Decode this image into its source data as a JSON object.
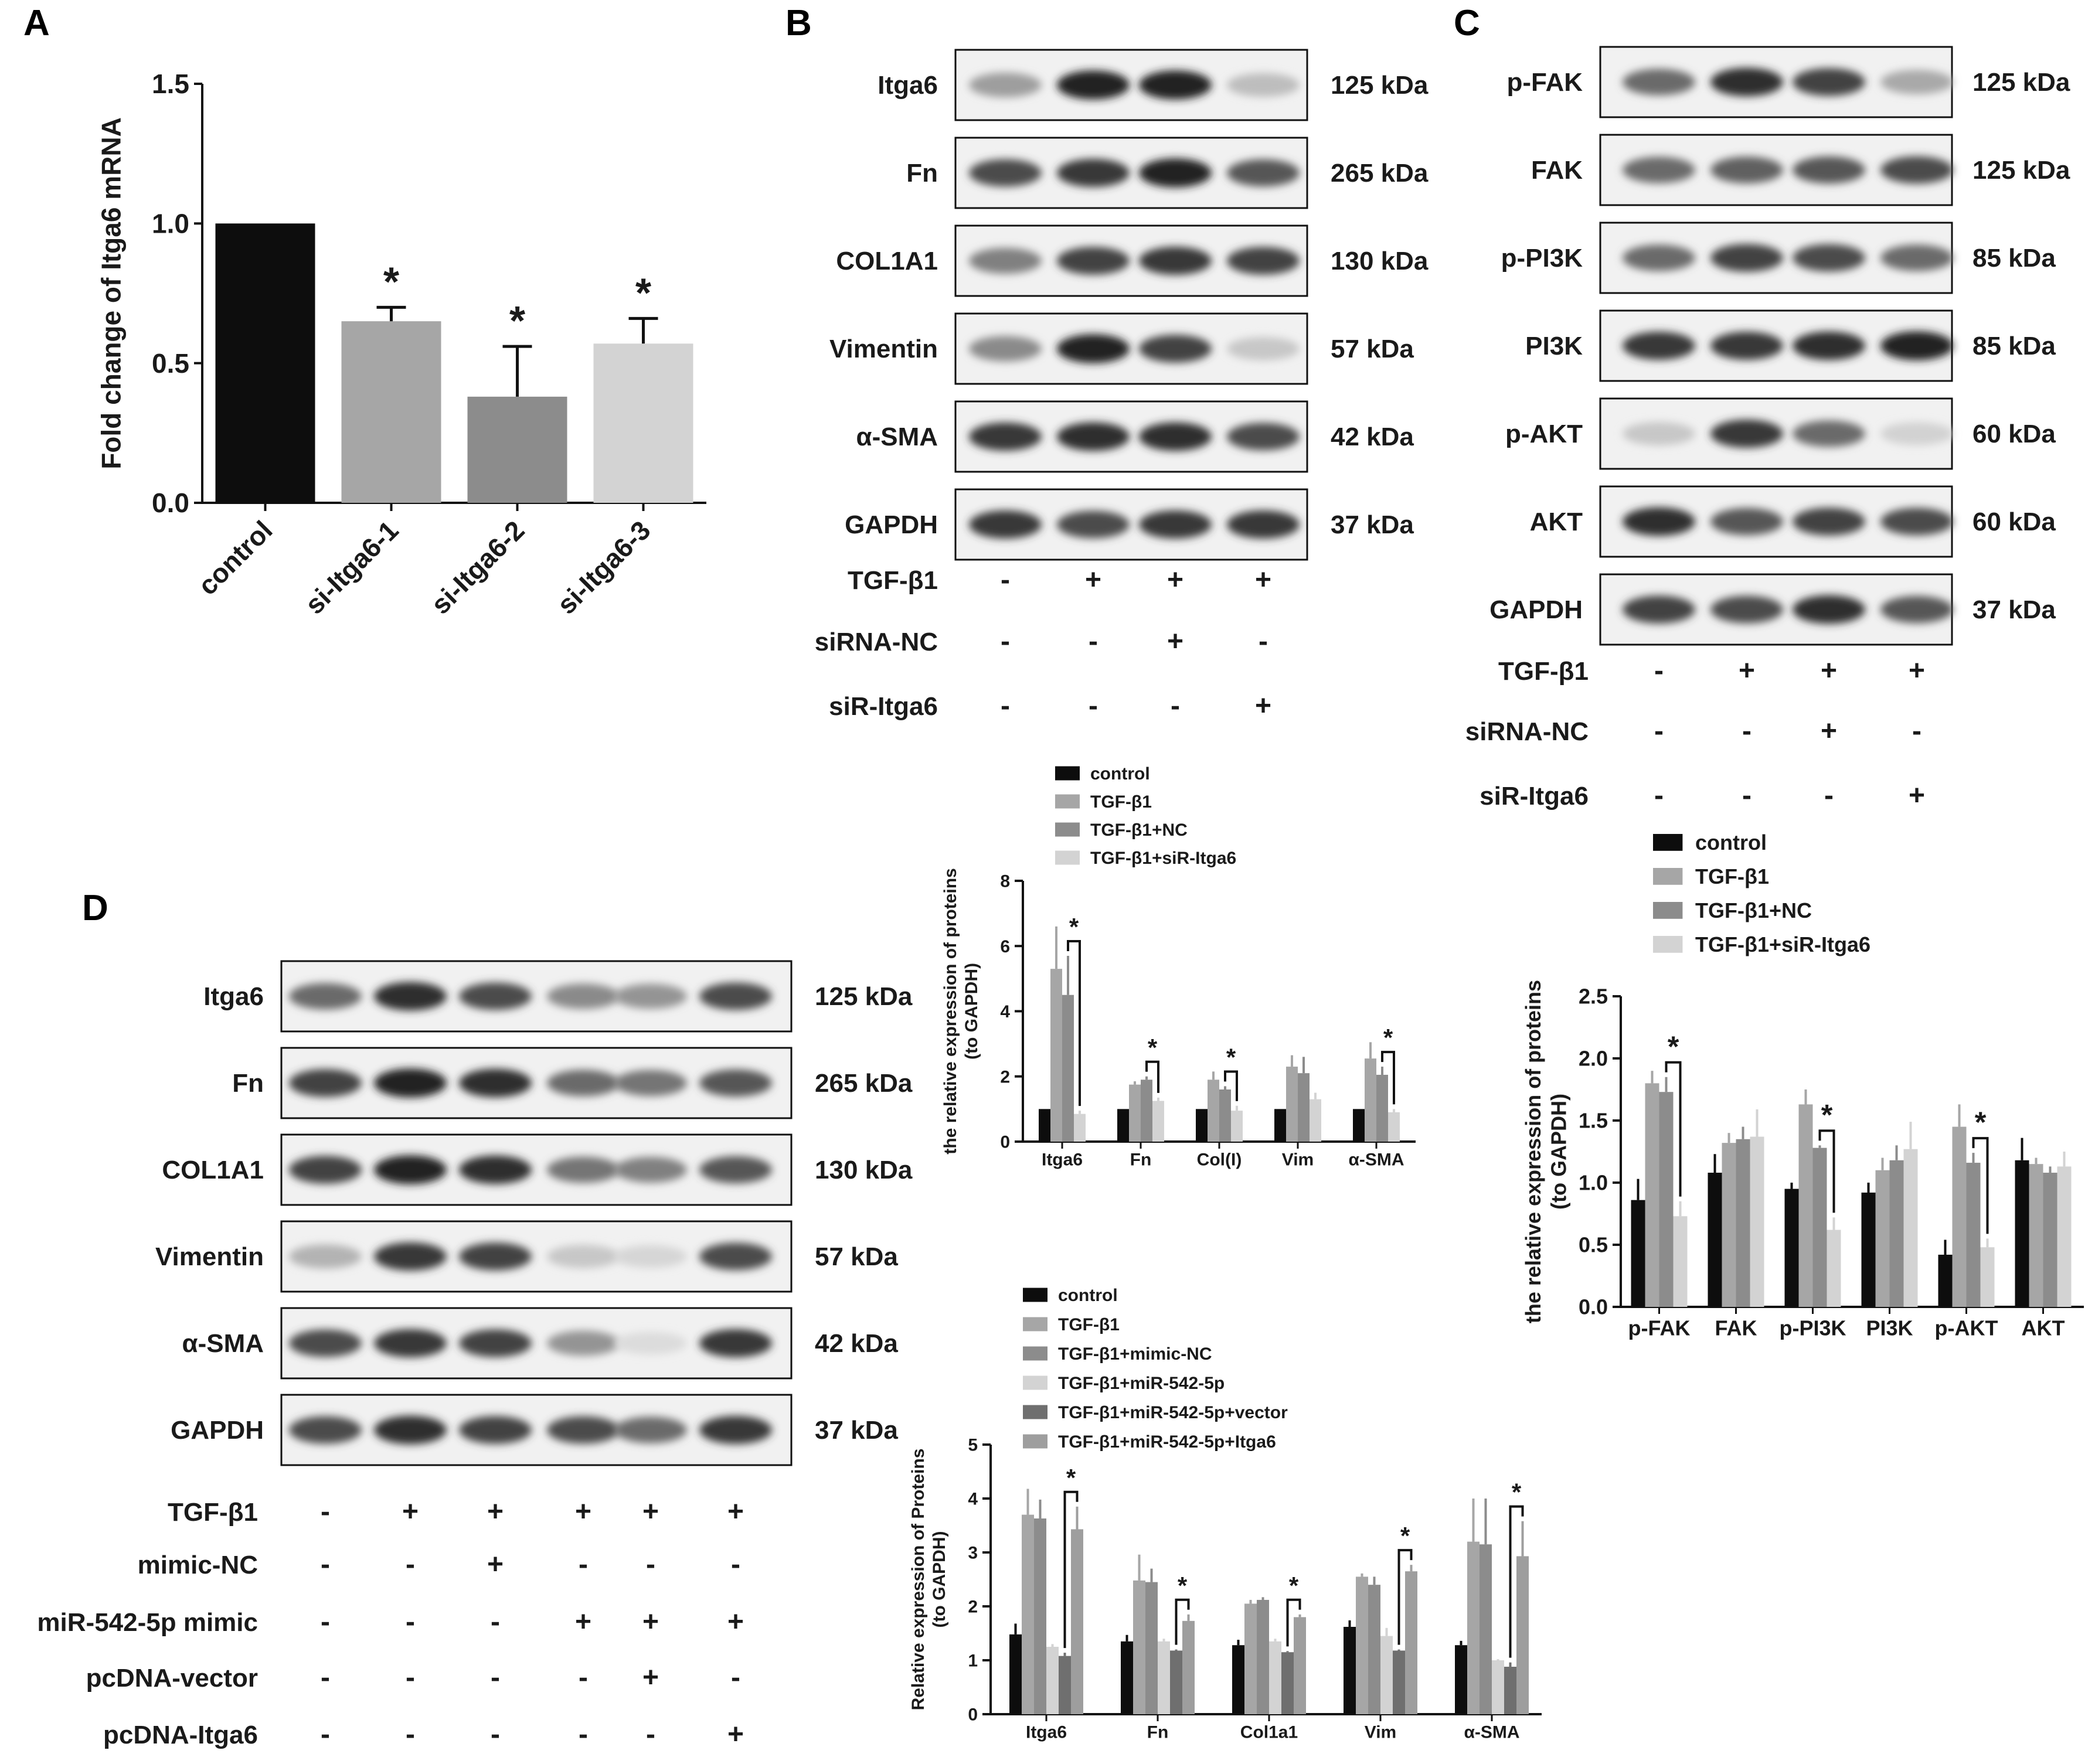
{
  "panel_letters": [
    "A",
    "B",
    "C",
    "D"
  ],
  "colors": {
    "black": "#0d0d0d",
    "gray_light": "#a6a6a6",
    "gray_mid": "#8c8c8c",
    "gray_pale": "#d3d3d3",
    "gray_dark": "#6f6f6f",
    "gray_last": "#9e9e9e"
  },
  "western_blots": [
    {
      "panel": "B",
      "bands": [
        {
          "label": "Itga6",
          "kda": "125 kDa",
          "intensity": [
            0.35,
            0.95,
            0.95,
            0.2
          ]
        },
        {
          "label": "Fn",
          "kda": "265 kDa",
          "intensity": [
            0.75,
            0.85,
            0.95,
            0.7
          ]
        },
        {
          "label": "COL1A1",
          "kda": "130 kDa",
          "intensity": [
            0.5,
            0.8,
            0.85,
            0.8
          ]
        },
        {
          "label": "Vimentin",
          "kda": "57 kDa",
          "intensity": [
            0.45,
            0.95,
            0.8,
            0.15
          ]
        },
        {
          "label": "α-SMA",
          "kda": "42 kDa",
          "intensity": [
            0.85,
            0.9,
            0.9,
            0.75
          ]
        },
        {
          "label": "GAPDH",
          "kda": "37 kDa",
          "intensity": [
            0.85,
            0.75,
            0.85,
            0.85
          ]
        }
      ],
      "conditions": [
        {
          "label": "TGF-β1",
          "signs": [
            "-",
            "+",
            "+",
            "+"
          ]
        },
        {
          "label": "siRNA-NC",
          "signs": [
            "-",
            "-",
            "+",
            "-"
          ]
        },
        {
          "label": "siR-Itga6",
          "signs": [
            "-",
            "-",
            "-",
            "+"
          ]
        }
      ]
    },
    {
      "panel": "C",
      "bands": [
        {
          "label": "p-FAK",
          "kda": "125 kDa",
          "intensity": [
            0.6,
            0.9,
            0.8,
            0.3
          ]
        },
        {
          "label": "FAK",
          "kda": "125 kDa",
          "intensity": [
            0.6,
            0.65,
            0.7,
            0.75
          ]
        },
        {
          "label": "p-PI3K",
          "kda": "85 kDa",
          "intensity": [
            0.6,
            0.8,
            0.75,
            0.6
          ]
        },
        {
          "label": "PI3K",
          "kda": "85 kDa",
          "intensity": [
            0.85,
            0.85,
            0.9,
            0.95
          ]
        },
        {
          "label": "p-AKT",
          "kda": "60 kDa",
          "intensity": [
            0.15,
            0.85,
            0.6,
            0.1
          ]
        },
        {
          "label": "AKT",
          "kda": "60 kDa",
          "intensity": [
            0.9,
            0.7,
            0.8,
            0.75
          ]
        },
        {
          "label": "GAPDH",
          "kda": "37 kDa",
          "intensity": [
            0.8,
            0.75,
            0.9,
            0.7
          ]
        }
      ],
      "conditions": [
        {
          "label": "TGF-β1",
          "signs": [
            "-",
            "+",
            "+",
            "+"
          ]
        },
        {
          "label": "siRNA-NC",
          "signs": [
            "-",
            "-",
            "+",
            "-"
          ]
        },
        {
          "label": "siR-Itga6",
          "signs": [
            "-",
            "-",
            "-",
            "+"
          ]
        }
      ]
    },
    {
      "panel": "D",
      "bands": [
        {
          "label": "Itga6",
          "kda": "125 kDa",
          "intensity": [
            0.6,
            0.9,
            0.75,
            0.45,
            0.4,
            0.75
          ]
        },
        {
          "label": "Fn",
          "kda": "265 kDa",
          "intensity": [
            0.8,
            0.95,
            0.9,
            0.6,
            0.55,
            0.7
          ]
        },
        {
          "label": "COL1A1",
          "kda": "130 kDa",
          "intensity": [
            0.8,
            0.95,
            0.9,
            0.55,
            0.5,
            0.7
          ]
        },
        {
          "label": "Vimentin",
          "kda": "57 kDa",
          "intensity": [
            0.25,
            0.85,
            0.8,
            0.15,
            0.08,
            0.75
          ]
        },
        {
          "label": "α-SMA",
          "kda": "42 kDa",
          "intensity": [
            0.75,
            0.85,
            0.8,
            0.4,
            0.05,
            0.85
          ]
        },
        {
          "label": "GAPDH",
          "kda": "37 kDa",
          "intensity": [
            0.75,
            0.9,
            0.8,
            0.75,
            0.6,
            0.85
          ]
        }
      ],
      "conditions": [
        {
          "label": "TGF-β1",
          "signs": [
            "-",
            "+",
            "+",
            "+",
            "+",
            "+"
          ]
        },
        {
          "label": "mimic-NC",
          "signs": [
            "-",
            "-",
            "+",
            "-",
            "-",
            "-"
          ]
        },
        {
          "label": "miR-542-5p mimic",
          "signs": [
            "-",
            "-",
            "-",
            "+",
            "+",
            "+"
          ]
        },
        {
          "label": "pcDNA-vector",
          "signs": [
            "-",
            "-",
            "-",
            "-",
            "+",
            "-"
          ]
        },
        {
          "label": "pcDNA-Itga6",
          "signs": [
            "-",
            "-",
            "-",
            "-",
            "-",
            "+"
          ]
        }
      ]
    }
  ],
  "chart_data": [
    {
      "panel": "A",
      "type": "bar",
      "ylabel": "Fold change of Itga6 mRNA",
      "categories": [
        "control",
        "si-Itga6-1",
        "si-Itga6-2",
        "si-Itga6-3"
      ],
      "values": [
        1.0,
        0.65,
        0.38,
        0.57
      ],
      "errors": [
        0,
        0.05,
        0.18,
        0.09
      ],
      "colors": [
        "#0d0d0d",
        "#a6a6a6",
        "#8c8c8c",
        "#d3d3d3"
      ],
      "significance": [
        "",
        "*",
        "*",
        "*"
      ],
      "ylim": [
        0,
        1.5
      ],
      "yticks": [
        "0.0",
        "0.5",
        "1.0",
        "1.5"
      ]
    },
    {
      "panel": "B",
      "type": "bar",
      "ylabel": "the relative expression of proteins (to GAPDH)",
      "ylabel_lines": [
        "the relative expression of proteins",
        "(to GAPDH)"
      ],
      "categories": [
        "Itga6",
        "Fn",
        "Col(I)",
        "Vim",
        "α-SMA"
      ],
      "ylim": [
        0,
        8
      ],
      "yticks": [
        "0",
        "2",
        "4",
        "6",
        "8"
      ],
      "legend_position": "top",
      "series": [
        {
          "name": "control",
          "color": "#0d0d0d",
          "values": [
            1.0,
            1.0,
            1.0,
            1.0,
            1.0
          ],
          "errors": [
            0,
            0,
            0,
            0,
            0
          ]
        },
        {
          "name": "TGF-β1",
          "color": "#a6a6a6",
          "values": [
            5.3,
            1.75,
            1.9,
            2.3,
            2.55
          ],
          "errors": [
            1.3,
            0.1,
            0.25,
            0.35,
            0.5
          ]
        },
        {
          "name": "TGF-β1+NC",
          "color": "#8c8c8c",
          "values": [
            4.5,
            1.9,
            1.6,
            2.1,
            2.05
          ],
          "errors": [
            1.2,
            0.1,
            0.1,
            0.5,
            0.25
          ]
        },
        {
          "name": "TGF-β1+siR-Itga6",
          "color": "#d3d3d3",
          "values": [
            0.85,
            1.25,
            0.95,
            1.3,
            0.9
          ],
          "errors": [
            0.1,
            0.1,
            0.15,
            0.2,
            0.1
          ]
        }
      ],
      "brackets": [
        [
          0,
          2,
          3
        ],
        [
          1,
          2,
          3
        ],
        [
          2,
          2,
          3
        ],
        [
          4,
          2,
          3
        ]
      ],
      "bracket_label": "*"
    },
    {
      "panel": "C",
      "type": "bar",
      "ylabel": "the relative expression of proteins (to GAPDH)",
      "ylabel_lines": [
        "the relative expression of proteins",
        "(to GAPDH)"
      ],
      "categories": [
        "p-FAK",
        "FAK",
        "p-PI3K",
        "PI3K",
        "p-AKT",
        "AKT"
      ],
      "ylim": [
        0,
        2.5
      ],
      "yticks": [
        "0.0",
        "0.5",
        "1.0",
        "1.5",
        "2.0",
        "2.5"
      ],
      "legend_position": "top",
      "series": [
        {
          "name": "control",
          "color": "#0d0d0d",
          "values": [
            0.86,
            1.08,
            0.95,
            0.92,
            0.42,
            1.18
          ],
          "errors": [
            0.17,
            0.15,
            0.05,
            0.08,
            0.12,
            0.18
          ]
        },
        {
          "name": "TGF-β1",
          "color": "#a6a6a6",
          "values": [
            1.8,
            1.32,
            1.63,
            1.1,
            1.45,
            1.15
          ],
          "errors": [
            0.1,
            0.08,
            0.12,
            0.1,
            0.18,
            0.05
          ]
        },
        {
          "name": "TGF-β1+NC",
          "color": "#8c8c8c",
          "values": [
            1.73,
            1.35,
            1.28,
            1.18,
            1.16,
            1.08
          ],
          "errors": [
            0.12,
            0.1,
            0.02,
            0.12,
            0.08,
            0.05
          ]
        },
        {
          "name": "TGF-β1+siR-Itga6",
          "color": "#d3d3d3",
          "values": [
            0.73,
            1.37,
            0.62,
            1.27,
            0.48,
            1.13
          ],
          "errors": [
            0.12,
            0.22,
            0.1,
            0.22,
            0.07,
            0.12
          ]
        }
      ],
      "brackets": [
        [
          0,
          2,
          3
        ],
        [
          2,
          2,
          3
        ],
        [
          4,
          2,
          3
        ]
      ],
      "bracket_label": "*"
    },
    {
      "panel": "D",
      "type": "bar",
      "ylabel": "Relative expression of Proteins (to GAPDH)",
      "ylabel_lines": [
        "Relative expression of Proteins",
        "(to GAPDH)"
      ],
      "categories": [
        "Itga6",
        "Fn",
        "Col1a1",
        "Vim",
        "α-SMA"
      ],
      "ylim": [
        0,
        5
      ],
      "yticks": [
        "0",
        "1",
        "2",
        "3",
        "4",
        "5"
      ],
      "legend_position": "top",
      "series": [
        {
          "name": "control",
          "color": "#0d0d0d",
          "values": [
            1.48,
            1.35,
            1.28,
            1.62,
            1.28
          ],
          "errors": [
            0.2,
            0.12,
            0.1,
            0.12,
            0.08
          ]
        },
        {
          "name": "TGF-β1",
          "color": "#a6a6a6",
          "values": [
            3.7,
            2.48,
            2.05,
            2.55,
            3.2
          ],
          "errors": [
            0.48,
            0.48,
            0.07,
            0.06,
            0.8
          ]
        },
        {
          "name": "TGF-β1+mimic-NC",
          "color": "#8c8c8c",
          "values": [
            3.63,
            2.45,
            2.12,
            2.4,
            3.15
          ],
          "errors": [
            0.35,
            0.25,
            0.05,
            0.15,
            0.85
          ]
        },
        {
          "name": "TGF-β1+miR-542-5p",
          "color": "#d3d3d3",
          "values": [
            1.25,
            1.35,
            1.35,
            1.45,
            1.0
          ],
          "errors": [
            0.05,
            0.05,
            0.05,
            0.15,
            0.02
          ]
        },
        {
          "name": "TGF-β1+miR-542-5p+vector",
          "color": "#6f6f6f",
          "values": [
            1.08,
            1.18,
            1.15,
            1.18,
            0.88
          ],
          "errors": [
            0.06,
            0.02,
            0.02,
            0.02,
            0.08
          ]
        },
        {
          "name": "TGF-β1+miR-542-5p+Itga6",
          "color": "#9e9e9e",
          "values": [
            3.43,
            1.73,
            1.8,
            2.65,
            2.93
          ],
          "errors": [
            0.42,
            0.12,
            0.05,
            0.12,
            0.65
          ]
        }
      ],
      "brackets": [
        [
          0,
          4,
          5
        ],
        [
          1,
          4,
          5
        ],
        [
          2,
          4,
          5
        ],
        [
          3,
          4,
          5
        ],
        [
          4,
          4,
          5
        ]
      ],
      "bracket_label": "*"
    }
  ]
}
